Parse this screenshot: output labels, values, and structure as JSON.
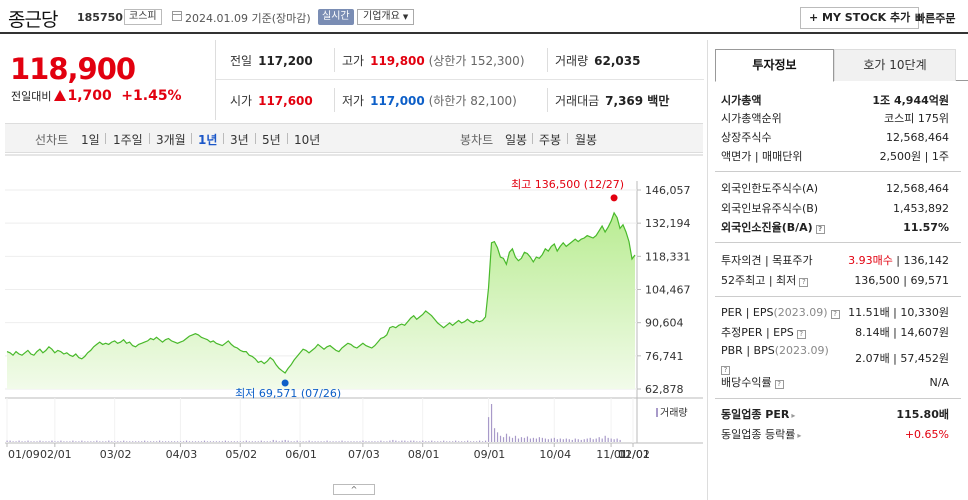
{
  "header": {
    "name": "종근당",
    "code": "185750",
    "market": "코스피",
    "date_text": "2024.01.09 기준(장마감)",
    "realtime": "실시간",
    "company_info": "기업개요",
    "mystock_button": "+ MY STOCK 추가",
    "quick_order": "빠른주문"
  },
  "price": {
    "current": "118,900",
    "change_label": "전일대비",
    "change_value": "1,700",
    "change_pct": "+1.45%"
  },
  "summary": {
    "prev_label": "전일",
    "prev_value": "117,200",
    "high_label": "고가",
    "high_value": "119,800",
    "high_sub": "(상한가 152,300)",
    "volume_label": "거래량",
    "volume_value": "62,035",
    "open_label": "시가",
    "open_value": "117,600",
    "low_label": "저가",
    "low_value": "117,000",
    "low_sub": "(하한가 82,100)",
    "amount_label": "거래대금",
    "amount_value": "7,369 백만"
  },
  "tabs": {
    "line_label": "선차트",
    "periods": [
      "1일",
      "1주일",
      "3개월",
      "1년",
      "3년",
      "5년",
      "10년"
    ],
    "active_period": "1년",
    "candle_label": "봉차트",
    "candles": [
      "일봉",
      "주봉",
      "월봉"
    ]
  },
  "chart_data": {
    "type": "area",
    "x_ticks": [
      "01/09",
      "02/01",
      "03/02",
      "04/03",
      "05/02",
      "06/01",
      "07/03",
      "08/01",
      "09/01",
      "10/04",
      "11/01",
      "12/01",
      "01/02"
    ],
    "y_ticks": [
      146057,
      132194,
      118331,
      104467,
      90604,
      76741,
      62878
    ],
    "ylim": [
      62878,
      146057
    ],
    "series": [
      {
        "values": [
          78500,
          78000,
          77000,
          78500,
          77500,
          77000,
          78000,
          79000,
          77500,
          77000,
          78500,
          79500,
          78000,
          79000,
          80500,
          79500,
          78000,
          79000,
          78500,
          77500,
          78000,
          77000,
          76500,
          77500,
          76000,
          75500,
          76500,
          78000,
          79000,
          80500,
          81500,
          82500,
          81500,
          82000,
          81500,
          82500,
          83000,
          82000,
          82500,
          83500,
          82000,
          82500,
          81000,
          80500,
          81500,
          82000,
          82500,
          83000,
          84000,
          83500,
          84500,
          83500,
          82500,
          83500,
          84000,
          83000,
          82500,
          82000,
          82500,
          83000,
          84000,
          85000,
          85500,
          86000,
          85500,
          84500,
          84000,
          83500,
          82500,
          83000,
          82000,
          81500,
          81000,
          82000,
          83000,
          81500,
          80500,
          80000,
          79000,
          78500,
          78500,
          77000,
          76500,
          75500,
          74000,
          74500,
          73500,
          74500,
          76000,
          75000,
          73000,
          71500,
          70500,
          69571,
          71500,
          73000,
          75000,
          76500,
          78000,
          79500,
          79000,
          78000,
          79000,
          80000,
          81500,
          80500,
          79500,
          80500,
          81000,
          80000,
          79000,
          78500,
          80000,
          81000,
          82000,
          81500,
          80500,
          80000,
          81000,
          82000,
          81000,
          80500,
          80000,
          81000,
          82500,
          84000,
          84500,
          85500,
          88500,
          89000,
          88500,
          89500,
          90000,
          89500,
          91000,
          92500,
          93500,
          92000,
          93000,
          94000,
          95500,
          94500,
          93500,
          92000,
          90500,
          89500,
          88500,
          89500,
          90500,
          89500,
          90500,
          91500,
          90500,
          91000,
          92000,
          91000,
          90500,
          91500,
          91000,
          91500,
          93000,
          105000,
          124000,
          124500,
          122000,
          118000,
          117500,
          115000,
          120000,
          121500,
          118000,
          116500,
          117500,
          120000,
          119500,
          118000,
          116000,
          118000,
          117500,
          119000,
          121500,
          120500,
          122500,
          123500,
          120500,
          122500,
          124000,
          122500,
          123500,
          124500,
          125500,
          124500,
          125500,
          126000,
          127000,
          126500,
          126000,
          127000,
          129000,
          131000,
          128500,
          130500,
          133000,
          136500,
          134500,
          130000,
          131500,
          128500,
          124500,
          117200,
          118900
        ],
        "color": "#49b92b"
      }
    ],
    "volume": {
      "label": "거래량",
      "values": [
        2,
        2,
        1,
        1,
        2,
        1,
        1,
        2,
        1,
        1,
        1,
        2,
        1,
        1,
        1,
        2,
        1,
        1,
        2,
        1,
        1,
        1,
        2,
        1,
        1,
        2,
        1,
        1,
        1,
        1,
        2,
        1,
        1,
        1,
        2,
        1,
        1,
        1,
        1,
        2,
        1,
        1,
        1,
        1,
        1,
        1,
        2,
        1,
        1,
        1,
        1,
        2,
        1,
        1,
        1,
        1,
        1,
        1,
        1,
        1,
        2,
        1,
        1,
        1,
        1,
        1,
        2,
        1,
        1,
        1,
        1,
        1,
        1,
        2,
        1,
        1,
        1,
        1,
        1,
        1,
        2,
        1,
        1,
        1,
        1,
        2,
        1,
        1,
        1,
        3,
        2,
        1,
        2,
        3,
        2,
        1,
        1,
        2,
        1,
        1,
        1,
        2,
        1,
        1,
        1,
        1,
        1,
        2,
        1,
        1,
        1,
        1,
        2,
        1,
        1,
        1,
        1,
        1,
        1,
        2,
        1,
        1,
        1,
        1,
        1,
        2,
        1,
        1,
        2,
        3,
        2,
        1,
        2,
        2,
        1,
        2,
        2,
        1,
        1,
        2,
        1,
        1,
        2,
        1,
        1,
        1,
        2,
        1,
        1,
        1,
        2,
        1,
        1,
        1,
        2,
        1,
        1,
        1,
        2,
        1,
        2,
        36,
        55,
        20,
        14,
        9,
        7,
        12,
        8,
        6,
        9,
        5,
        7,
        6,
        8,
        5,
        6,
        5,
        7,
        6,
        5,
        4,
        5,
        6,
        4,
        5,
        4,
        5,
        4,
        3,
        5,
        4,
        3,
        4,
        5,
        6,
        4,
        5,
        7,
        5,
        9,
        6,
        5,
        4,
        5,
        3
      ]
    },
    "annotations": {
      "high": "최고 136,500 (12/27)",
      "low": "최저 69,571 (07/26)"
    },
    "collapse_button": "^"
  },
  "invest_info": {
    "tab_active": "투자정보",
    "tab_inactive": "호가 10단계",
    "market_cap_label": "시가총액",
    "market_cap_value": "1조 4,944억원",
    "rank_label": "시가총액순위",
    "rank_value": "코스피 175위",
    "shares_label": "상장주식수",
    "shares_value": "12,568,464",
    "face_label": "액면가 | 매매단위",
    "face_value": "2,500원 | 1주",
    "foreign_limit_label": "외국인한도주식수(A)",
    "foreign_limit_value": "12,568,464",
    "foreign_hold_label": "외국인보유주식수(B)",
    "foreign_hold_value": "1,453,892",
    "foreign_rate_label": "외국인소진율(B/A)",
    "foreign_rate_value": "11.57%",
    "opinion_label": "투자의견 | 목표주가",
    "opinion_value_red": "3.93매수",
    "opinion_value": " | 136,142",
    "week52_label": "52주최고 | 최저",
    "week52_value": "136,500 | 69,571",
    "per_label": "PER | EPS",
    "per_period": "(2023.09)",
    "per_value": "11.51배 | 10,330원",
    "est_per_label": "추정PER | EPS",
    "est_per_value": "8.14배 | 14,607원",
    "pbr_label": "PBR | BPS",
    "pbr_period": "(2023.09)",
    "pbr_value": "2.07배 | 57,452원",
    "dividend_label": "배당수익률",
    "dividend_value": "N/A",
    "industry_per_label": "동일업종 PER",
    "industry_per_value": "115.80배",
    "industry_rate_label": "동일업종 등락률",
    "industry_rate_value": "+0.65%"
  },
  "colors": {
    "up": "#e2000f",
    "down": "#0d5fc8",
    "line": "#49b92b",
    "area": "#d4f3b6"
  }
}
